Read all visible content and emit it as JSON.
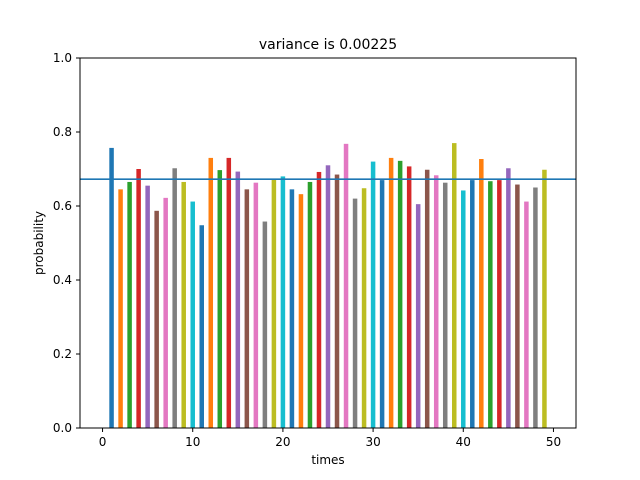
{
  "chart_data": {
    "type": "bar",
    "title": "variance is 0.00225",
    "xlabel": "times",
    "ylabel": "probability",
    "xlim": [
      -2.5,
      52.5
    ],
    "ylim": [
      0,
      1.0
    ],
    "xticks": [
      0,
      10,
      20,
      30,
      40,
      50
    ],
    "yticks": [
      0.0,
      0.2,
      0.4,
      0.6,
      0.8,
      1.0
    ],
    "x": [
      1,
      2,
      3,
      4,
      5,
      6,
      7,
      8,
      9,
      10,
      11,
      12,
      13,
      14,
      15,
      16,
      17,
      18,
      19,
      20,
      21,
      22,
      23,
      24,
      25,
      26,
      27,
      28,
      29,
      30,
      31,
      32,
      33,
      34,
      35,
      36,
      37,
      38,
      39,
      40,
      41,
      42,
      43,
      44,
      45,
      46,
      47,
      48,
      49
    ],
    "values": [
      0.757,
      0.645,
      0.665,
      0.7,
      0.655,
      0.587,
      0.622,
      0.702,
      0.665,
      0.612,
      0.548,
      0.73,
      0.697,
      0.73,
      0.693,
      0.645,
      0.663,
      0.558,
      0.672,
      0.68,
      0.645,
      0.632,
      0.665,
      0.692,
      0.71,
      0.685,
      0.768,
      0.62,
      0.648,
      0.72,
      0.67,
      0.73,
      0.722,
      0.707,
      0.605,
      0.698,
      0.683,
      0.663,
      0.77,
      0.642,
      0.67,
      0.727,
      0.667,
      0.67,
      0.702,
      0.658,
      0.612,
      0.65,
      0.698
    ],
    "mean_line": 0.6725,
    "mean_line_color": "#1f77b4",
    "bar_colors": [
      "#1f77b4",
      "#ff7f0e",
      "#2ca02c",
      "#d62728",
      "#9467bd",
      "#8c564b",
      "#e377c2",
      "#7f7f7f",
      "#bcbd22",
      "#17becf"
    ],
    "grid": false,
    "legend": "none"
  }
}
